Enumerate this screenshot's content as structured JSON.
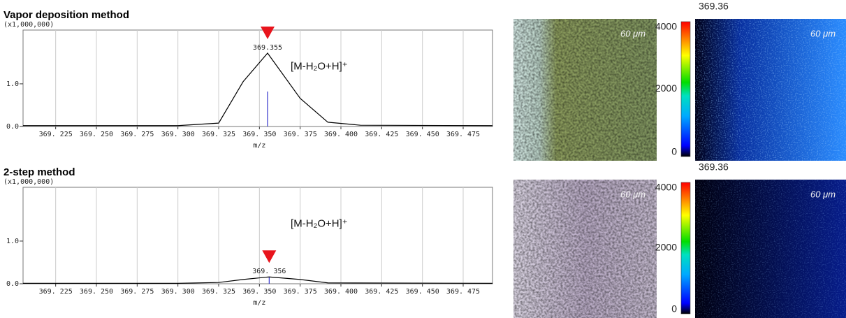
{
  "chart_data": [
    {
      "type": "line",
      "title": "Vapor deposition method",
      "y_multiplier": "(x1,000,000)",
      "x_label": "m/z",
      "annotation": "[M-H₂O+H]⁺",
      "xlim": [
        369.205,
        369.493
      ],
      "ylim": [
        0,
        2.26
      ],
      "xticks": [
        {
          "value": 369.225,
          "label": "369. 225"
        },
        {
          "value": 369.25,
          "label": "369. 250"
        },
        {
          "value": 369.275,
          "label": "369. 275"
        },
        {
          "value": 369.3,
          "label": "369. 300"
        },
        {
          "value": 369.325,
          "label": "369. 325"
        },
        {
          "value": 369.35,
          "label": "369. 350"
        },
        {
          "value": 369.375,
          "label": "369. 375"
        },
        {
          "value": 369.4,
          "label": "369. 400"
        },
        {
          "value": 369.425,
          "label": "369. 425"
        },
        {
          "value": 369.45,
          "label": "369. 450"
        },
        {
          "value": 369.475,
          "label": "369. 475"
        }
      ],
      "yticks": [
        {
          "value": 0,
          "label": "0.0"
        },
        {
          "value": 1,
          "label": "1.0"
        }
      ],
      "grid": true,
      "series": [
        {
          "color": "#000000",
          "x": [
            369.205,
            369.3,
            369.325,
            369.34,
            369.355,
            369.375,
            369.392,
            369.412,
            369.493
          ],
          "values": [
            0.02,
            0.02,
            0.08,
            1.05,
            1.72,
            0.66,
            0.1,
            0.03,
            0.02
          ]
        }
      ],
      "peaks": {
        "color": "#3333cc",
        "x": [
          369.355
        ],
        "values": [
          0.82
        ],
        "value_labels": [
          "369.355"
        ]
      }
    },
    {
      "type": "line",
      "title": "2-step method",
      "y_multiplier": "(x1,000,000)",
      "x_label": "m/z",
      "annotation": "[M-H₂O+H]⁺",
      "xlim": [
        369.205,
        369.493
      ],
      "ylim": [
        0,
        2.26
      ],
      "xticks": [
        {
          "value": 369.225,
          "label": "369. 225"
        },
        {
          "value": 369.25,
          "label": "369. 250"
        },
        {
          "value": 369.275,
          "label": "369. 275"
        },
        {
          "value": 369.3,
          "label": "369. 300"
        },
        {
          "value": 369.325,
          "label": "369. 325"
        },
        {
          "value": 369.35,
          "label": "369. 350"
        },
        {
          "value": 369.375,
          "label": "369. 375"
        },
        {
          "value": 369.4,
          "label": "369. 400"
        },
        {
          "value": 369.425,
          "label": "369. 425"
        },
        {
          "value": 369.45,
          "label": "369. 450"
        },
        {
          "value": 369.475,
          "label": "369. 475"
        }
      ],
      "yticks": [
        {
          "value": 0,
          "label": "0.0"
        },
        {
          "value": 1,
          "label": "1.0"
        }
      ],
      "grid": true,
      "series": [
        {
          "color": "#000000",
          "x": [
            369.205,
            369.3,
            369.325,
            369.34,
            369.356,
            369.375,
            369.392,
            369.493
          ],
          "values": [
            0.01,
            0.01,
            0.03,
            0.1,
            0.16,
            0.1,
            0.02,
            0.01
          ]
        }
      ],
      "peaks": {
        "color": "#3333cc",
        "x": [
          369.356
        ],
        "values": [
          0.15
        ],
        "value_labels": [
          "369. 356"
        ]
      }
    }
  ],
  "panels": [
    {
      "photo_scale": "60 μm",
      "map_title": "369.36",
      "map_scale": "60 μm",
      "clim": [
        0,
        4000
      ],
      "colorbar_ticks": [
        4000,
        2000,
        0
      ]
    },
    {
      "photo_scale": "60 μm",
      "map_title": "369.36",
      "map_scale": "60 μm",
      "clim": [
        0,
        4000
      ],
      "colorbar_ticks": [
        4000,
        2000,
        0
      ]
    }
  ]
}
